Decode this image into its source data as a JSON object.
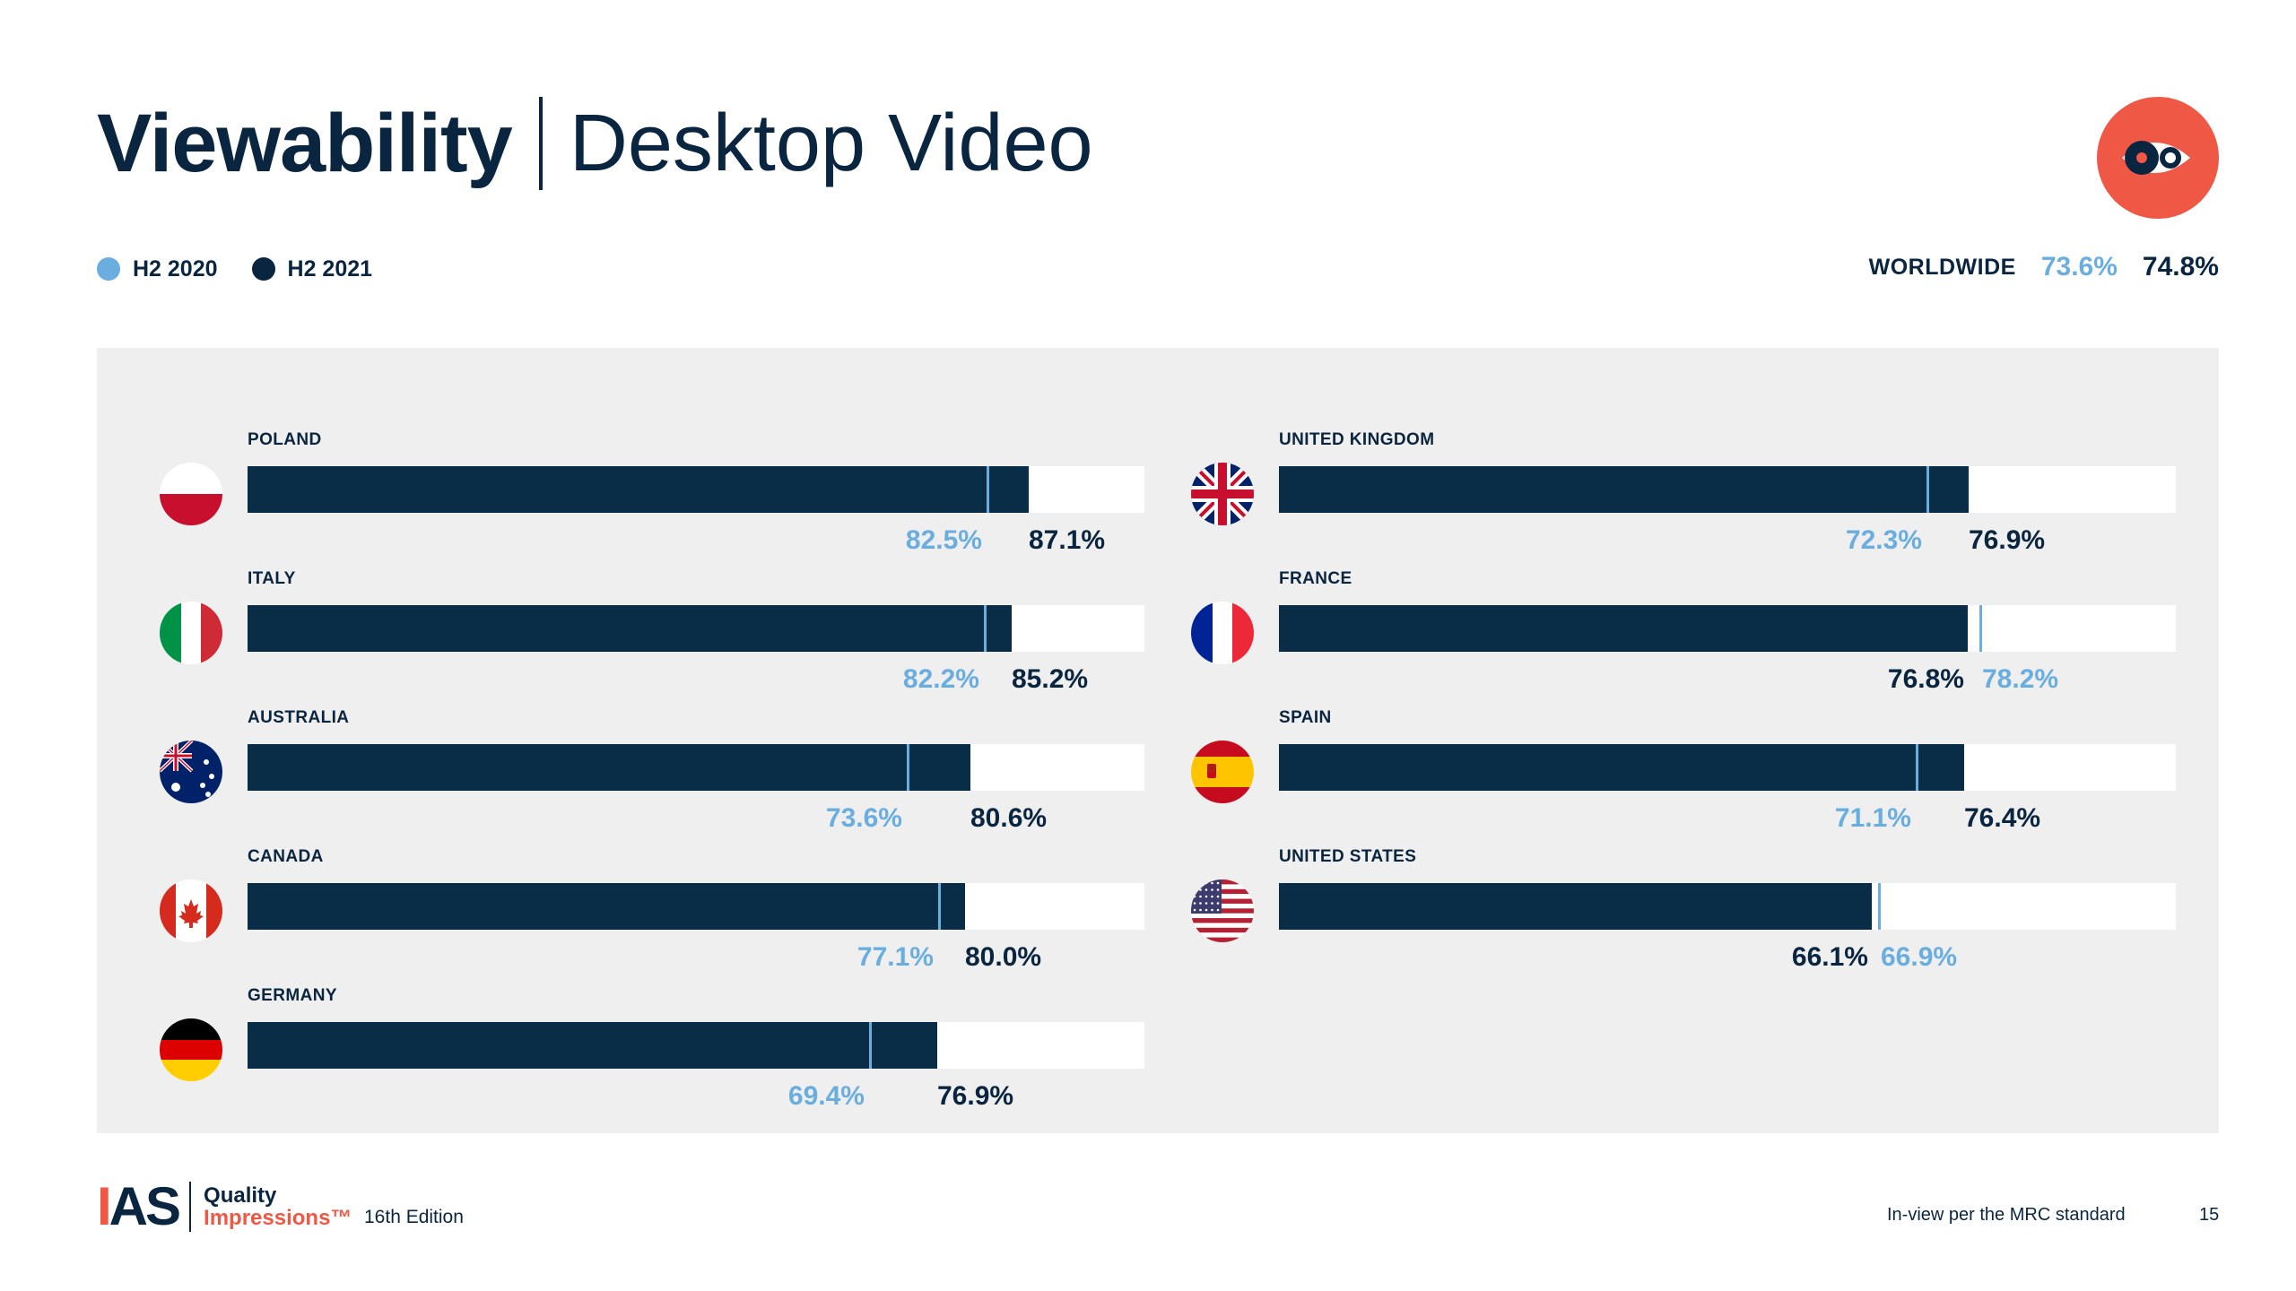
{
  "title": {
    "strong": "Viewability",
    "light": "Desktop Video"
  },
  "legend": [
    {
      "label": "H2 2020",
      "color": "#6aaee0"
    },
    {
      "label": "H2 2021",
      "color": "#0a2540"
    }
  ],
  "worldwide": {
    "label": "WORLDWIDE",
    "h2_2020": "73.6%",
    "h2_2021": "74.8%"
  },
  "chart_data": {
    "type": "bar",
    "orientation": "horizontal",
    "xlim": [
      0,
      100
    ],
    "series_names": [
      "H2 2020",
      "H2 2021"
    ],
    "series_colors": {
      "H2 2020": "#6aaee0",
      "H2 2021": "#0a2d47"
    },
    "countries": [
      {
        "name": "POLAND",
        "flag": "poland-flag-icon",
        "h2_2020": 82.5,
        "h2_2021": 87.1,
        "h2_2020_label": "82.5%",
        "h2_2021_label": "87.1%"
      },
      {
        "name": "ITALY",
        "flag": "italy-flag-icon",
        "h2_2020": 82.2,
        "h2_2021": 85.2,
        "h2_2020_label": "82.2%",
        "h2_2021_label": "85.2%"
      },
      {
        "name": "AUSTRALIA",
        "flag": "australia-flag-icon",
        "h2_2020": 73.6,
        "h2_2021": 80.6,
        "h2_2020_label": "73.6%",
        "h2_2021_label": "80.6%"
      },
      {
        "name": "CANADA",
        "flag": "canada-flag-icon",
        "h2_2020": 77.1,
        "h2_2021": 80.0,
        "h2_2020_label": "77.1%",
        "h2_2021_label": "80.0%"
      },
      {
        "name": "GERMANY",
        "flag": "germany-flag-icon",
        "h2_2020": 69.4,
        "h2_2021": 76.9,
        "h2_2020_label": "69.4%",
        "h2_2021_label": "76.9%"
      },
      {
        "name": "UNITED KINGDOM",
        "flag": "uk-flag-icon",
        "h2_2020": 72.3,
        "h2_2021": 76.9,
        "h2_2020_label": "72.3%",
        "h2_2021_label": "76.9%"
      },
      {
        "name": "FRANCE",
        "flag": "france-flag-icon",
        "h2_2020": 78.2,
        "h2_2021": 76.8,
        "h2_2020_label": "78.2%",
        "h2_2021_label": "76.8%"
      },
      {
        "name": "SPAIN",
        "flag": "spain-flag-icon",
        "h2_2020": 71.1,
        "h2_2021": 76.4,
        "h2_2020_label": "71.1%",
        "h2_2021_label": "76.4%"
      },
      {
        "name": "UNITED STATES",
        "flag": "us-flag-icon",
        "h2_2020": 66.9,
        "h2_2021": 66.1,
        "h2_2020_label": "66.9%",
        "h2_2021_label": "66.1%"
      }
    ]
  },
  "brand": {
    "icon": "eye-icon",
    "color": "#ef5844"
  },
  "footer": {
    "logo_text": "IAS",
    "logo_line1": "Quality",
    "logo_line2": "Impressions™",
    "edition": "16th Edition",
    "footnote": "In-view per the MRC standard",
    "page": "15"
  }
}
